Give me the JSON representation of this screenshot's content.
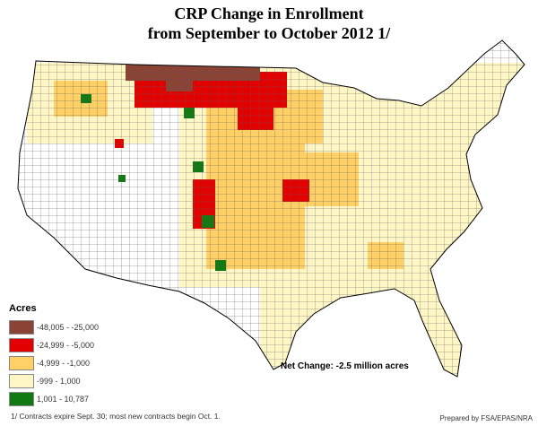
{
  "title_line1": "CRP Change in Enrollment",
  "title_line2": "from September to October 2012  1/",
  "legend": {
    "title": "Acres",
    "items": [
      {
        "label": "-48,005 - -25,000",
        "color": "#8b4336"
      },
      {
        "label": "-24,999 - -5,000",
        "color": "#e30000"
      },
      {
        "label": "-4,999 - -1,000",
        "color": "#ffd066"
      },
      {
        "label": "-999 - 1,000",
        "color": "#fff6c6"
      },
      {
        "label": "1,001 - 10,787",
        "color": "#127a12"
      }
    ]
  },
  "net_change": "Net Change: -2.5 million acres",
  "footnote": "1/ Contracts expire Sept. 30; most new contracts begin Oct. 1.",
  "prepared_by": "Prepared by FSA/EPAS/NRA"
}
